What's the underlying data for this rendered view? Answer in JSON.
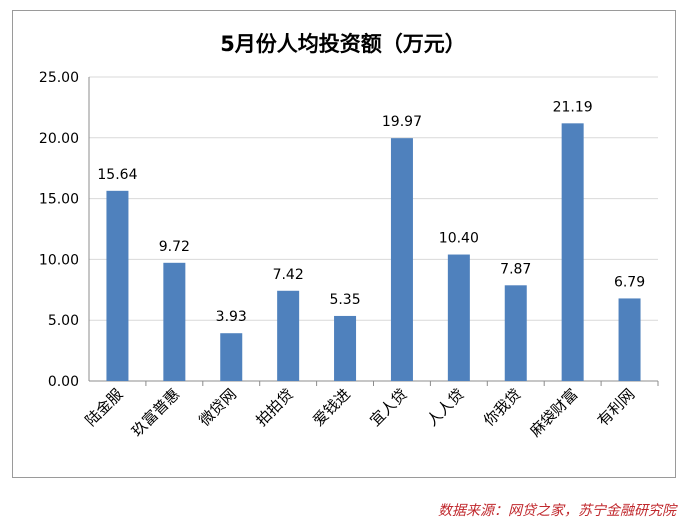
{
  "chart_data": {
    "type": "bar",
    "title": "5月份人均投资额（万元）",
    "categories": [
      "陆金服",
      "玖富普惠",
      "微贷网",
      "拍拍贷",
      "爱钱进",
      "宜人贷",
      "人人贷",
      "你我贷",
      "麻袋财富",
      "有利网"
    ],
    "values": [
      15.64,
      9.72,
      3.93,
      7.42,
      5.35,
      19.97,
      10.4,
      7.87,
      21.19,
      6.79
    ],
    "value_labels": [
      "15.64",
      "9.72",
      "3.93",
      "7.42",
      "5.35",
      "19.97",
      "10.40",
      "7.87",
      "21.19",
      "6.79"
    ],
    "ylim": [
      0,
      25
    ],
    "yticks": [
      "0.00",
      "5.00",
      "10.00",
      "15.00",
      "20.00",
      "25.00"
    ],
    "ytick_values": [
      0,
      5,
      10,
      15,
      20,
      25
    ],
    "grid": true,
    "legend": "none",
    "bar_color": "#4f81bd",
    "xlabel": "",
    "ylabel": ""
  },
  "source": "数据来源：网贷之家，苏宁金融研究院",
  "colors": {
    "source": "#c0282d",
    "grid": "#d9d9d9",
    "axis": "#8c8c8c"
  }
}
